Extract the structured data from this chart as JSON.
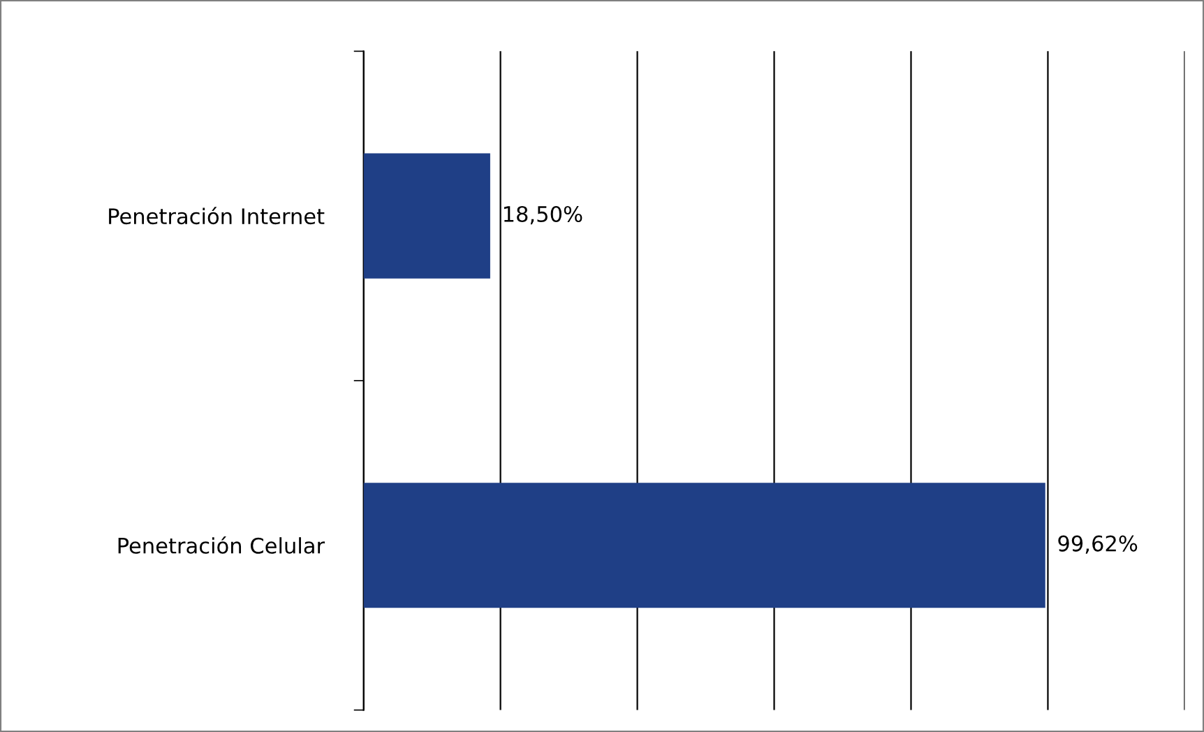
{
  "chart_data": {
    "type": "bar",
    "orientation": "horizontal",
    "categories": [
      "Penetración Internet",
      "Penetración Celular"
    ],
    "values": [
      18.5,
      99.62
    ],
    "value_labels": [
      "18,50%",
      "99,62%"
    ],
    "color": "#1f3f86",
    "xlim": [
      0,
      120
    ],
    "xticks": [
      {
        "value": 0,
        "label": null
      },
      {
        "value": 20,
        "label": null
      },
      {
        "value": 40,
        "label": null
      },
      {
        "value": 60,
        "label": null
      },
      {
        "value": 80,
        "label": null
      },
      {
        "value": 100,
        "label": null
      },
      {
        "value": 120,
        "label": null
      }
    ],
    "grid": "x",
    "tick_labels": "y",
    "legend": false
  }
}
